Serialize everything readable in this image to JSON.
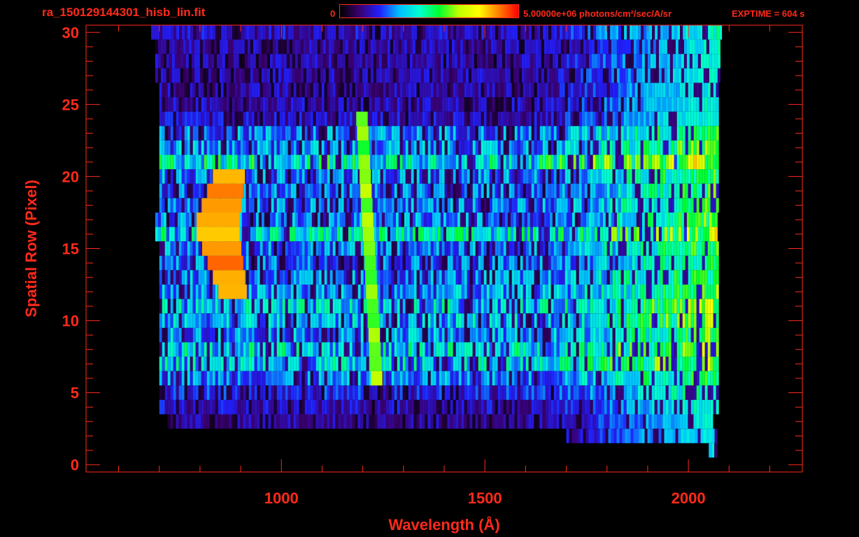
{
  "header": {
    "file_title": "ra_150129144301_hisb_lin.fit",
    "colorbar_min": "0",
    "colorbar_units": "5.00000e+06 photons/cm²/sec/A/sr",
    "exptime": "EXPTIME = 604 s"
  },
  "colors": {
    "axis": "#ff2a1a",
    "background": "#000000",
    "colormap": [
      "#000000",
      "#3a0070",
      "#2020ff",
      "#00c0ff",
      "#00ffd0",
      "#00ff30",
      "#c0ff00",
      "#ffff00",
      "#ff8000",
      "#ff0000"
    ]
  },
  "chart_data": {
    "type": "heatmap",
    "xlabel": "Wavelength (Å)",
    "ylabel": "Spatial Row (Pixel)",
    "xlim": [
      520,
      2280
    ],
    "ylim": [
      -0.5,
      30.5
    ],
    "xticks": [
      1000,
      1500,
      2000
    ],
    "yticks": [
      0,
      5,
      10,
      15,
      20,
      25,
      30
    ],
    "grid": false,
    "colorbar": {
      "min": 0,
      "max": 5000000,
      "units": "photons/cm²/sec/A/sr"
    },
    "rows": [
      {
        "y": 30,
        "x_range": [
          680,
          2080
        ],
        "level": 0.18
      },
      {
        "y": 29,
        "x_range": [
          690,
          2075
        ],
        "level": 0.16
      },
      {
        "y": 28,
        "x_range": [
          690,
          2075
        ],
        "level": 0.16
      },
      {
        "y": 27,
        "x_range": [
          690,
          2075
        ],
        "level": 0.16
      },
      {
        "y": 26,
        "x_range": [
          700,
          2075
        ],
        "level": 0.16
      },
      {
        "y": 25,
        "x_range": [
          700,
          2075
        ],
        "level": 0.17
      },
      {
        "y": 24,
        "x_range": [
          700,
          2075
        ],
        "level": 0.18
      },
      {
        "y": 23,
        "x_range": [
          700,
          2070
        ],
        "level": 0.3
      },
      {
        "y": 22,
        "x_range": [
          700,
          2070
        ],
        "level": 0.32
      },
      {
        "y": 21,
        "x_range": [
          700,
          2070
        ],
        "level": 0.45
      },
      {
        "y": 20,
        "x_range": [
          700,
          2070
        ],
        "level": 0.3
      },
      {
        "y": 19,
        "x_range": [
          700,
          2070
        ],
        "level": 0.28
      },
      {
        "y": 18,
        "x_range": [
          700,
          2070
        ],
        "level": 0.3
      },
      {
        "y": 17,
        "x_range": [
          690,
          2070
        ],
        "level": 0.3
      },
      {
        "y": 16,
        "x_range": [
          690,
          2070
        ],
        "level": 0.42
      },
      {
        "y": 15,
        "x_range": [
          700,
          2070
        ],
        "level": 0.3
      },
      {
        "y": 14,
        "x_range": [
          700,
          2070
        ],
        "level": 0.28
      },
      {
        "y": 13,
        "x_range": [
          700,
          2070
        ],
        "level": 0.3
      },
      {
        "y": 12,
        "x_range": [
          700,
          2070
        ],
        "level": 0.32
      },
      {
        "y": 11,
        "x_range": [
          700,
          2070
        ],
        "level": 0.38
      },
      {
        "y": 10,
        "x_range": [
          700,
          2070
        ],
        "level": 0.35
      },
      {
        "y": 9,
        "x_range": [
          700,
          2070
        ],
        "level": 0.32
      },
      {
        "y": 8,
        "x_range": [
          700,
          2070
        ],
        "level": 0.4
      },
      {
        "y": 7,
        "x_range": [
          700,
          2070
        ],
        "level": 0.38
      },
      {
        "y": 6,
        "x_range": [
          700,
          2070
        ],
        "level": 0.3
      },
      {
        "y": 5,
        "x_range": [
          700,
          2070
        ],
        "level": 0.22
      },
      {
        "y": 4,
        "x_range": [
          700,
          2070
        ],
        "level": 0.18
      },
      {
        "y": 3,
        "x_range": [
          720,
          2060
        ],
        "level": 0.15
      },
      {
        "y": 2,
        "x_range": [
          1700,
          2065
        ],
        "level": 0.14
      },
      {
        "y": 1,
        "x_range": [
          2050,
          2065
        ],
        "level": 0.12
      }
    ],
    "features": [
      {
        "name": "emission-line",
        "x": 1216,
        "y_range": [
          5,
          24
        ],
        "level": 0.62
      },
      {
        "name": "bright-arc",
        "x_center": 840,
        "y_range": [
          11,
          20
        ],
        "level": 0.88
      }
    ]
  }
}
